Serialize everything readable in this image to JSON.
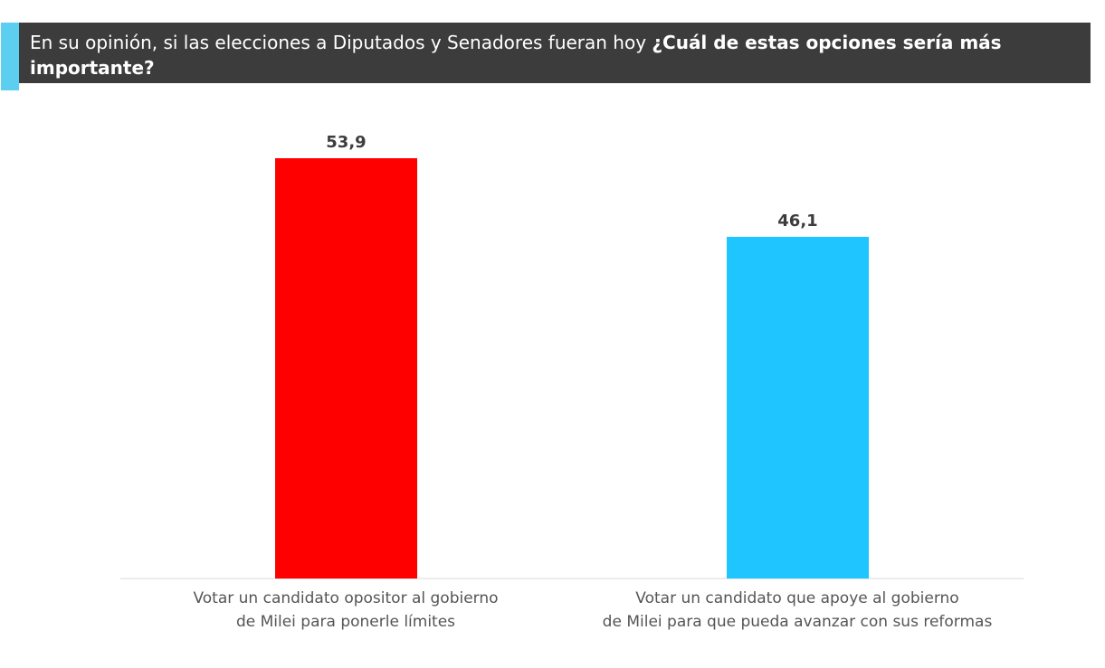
{
  "header": {
    "title_regular": "En su opinión, si las elecciones a Diputados y Senadores fueran hoy ",
    "title_bold": "¿Cuál de estas opciones sería más importante?"
  },
  "colors": {
    "accent": "#5ccff0",
    "header_bg": "#3c3c3c"
  },
  "chart_data": {
    "type": "bar",
    "title": "En su opinión, si las elecciones a Diputados y Senadores fueran hoy ¿Cuál de estas opciones sería más importante?",
    "categories": [
      "Votar un candidato opositor al gobierno de Milei para ponerle límites",
      "Votar un candidato que apoye al gobierno de Milei para que pueda avanzar con sus reformas"
    ],
    "category_lines": [
      [
        "Votar un candidato opositor al gobierno",
        "de Milei para ponerle límites"
      ],
      [
        "Votar un candidato que apoye al gobierno",
        "de Milei para que pueda avanzar con sus reformas"
      ]
    ],
    "values": [
      53.9,
      46.1
    ],
    "labels": [
      "53,9",
      "46,1"
    ],
    "colors": [
      "#ff0000",
      "#1ec5ff"
    ],
    "grid": false,
    "legend": "none"
  }
}
